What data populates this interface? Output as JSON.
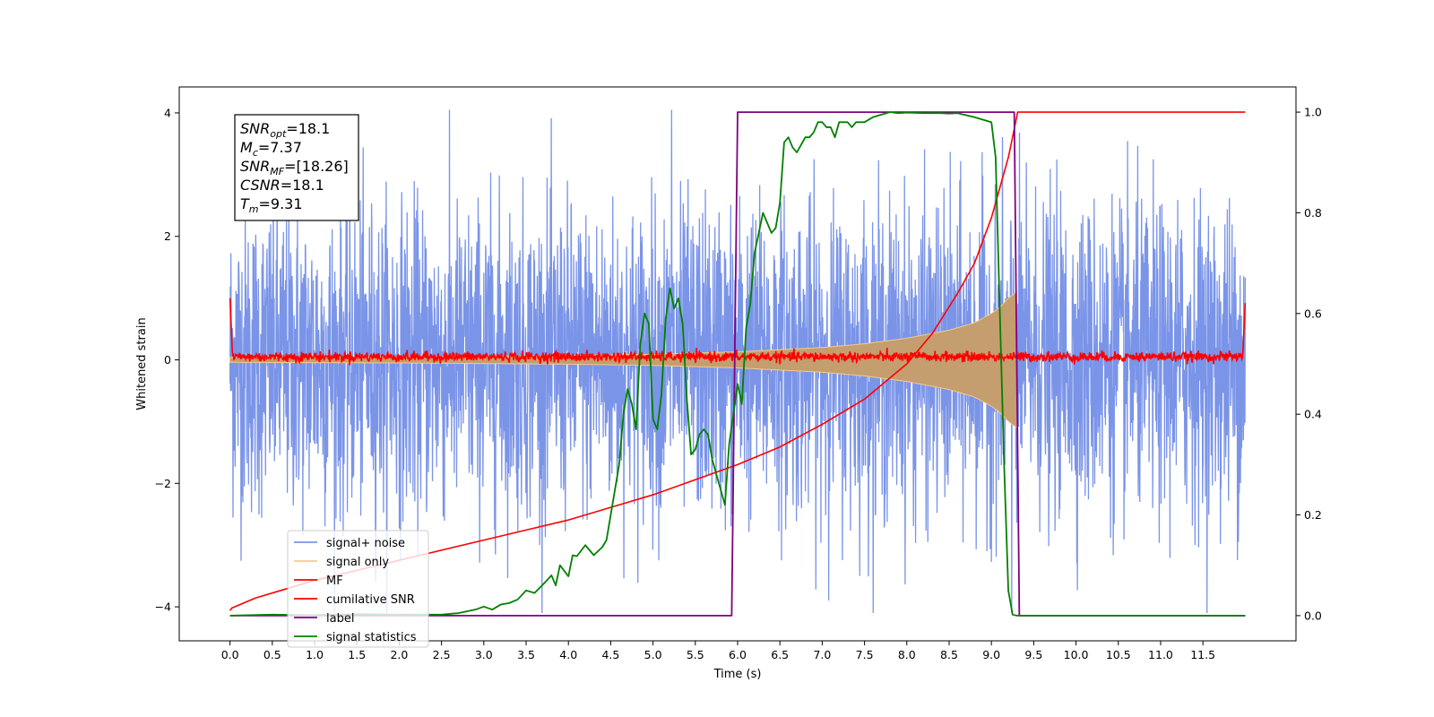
{
  "chart_data": {
    "type": "line",
    "title": "",
    "xlabel": "Time (s)",
    "ylabel": "Whitened strain",
    "xlim": [
      -0.6,
      12.6
    ],
    "ylim": [
      -4.55,
      4.42
    ],
    "y2lim": [
      -0.05,
      1.05
    ],
    "x_ticks": [
      "0.0",
      "0.5",
      "1.0",
      "1.5",
      "2.0",
      "2.5",
      "3.0",
      "3.5",
      "4.0",
      "4.5",
      "5.0",
      "5.5",
      "6.0",
      "6.5",
      "7.0",
      "7.5",
      "8.0",
      "8.5",
      "9.0",
      "9.5",
      "10.0",
      "10.5",
      "11.0",
      "11.5"
    ],
    "y_ticks": [
      "-4",
      "-2",
      "0",
      "2",
      "4"
    ],
    "y2_ticks": [
      "0.0",
      "0.2",
      "0.4",
      "0.6",
      "0.8",
      "1.0"
    ],
    "grid": false,
    "legend_position": "lower-left",
    "annotation": {
      "position": "upper-left",
      "lines": [
        {
          "base": "SNR",
          "sub": "opt",
          "value": "=18.1"
        },
        {
          "base": "M",
          "sub": "c",
          "value": "=7.37"
        },
        {
          "base": "SNR",
          "sub": "MF",
          "value": "=[18.26]"
        },
        {
          "base": "CSNR",
          "sub": "",
          "value": "=18.1"
        },
        {
          "base": "T",
          "sub": "m",
          "value": "=9.31"
        }
      ]
    },
    "series": [
      {
        "name": "signal+ noise",
        "color": "#7a94e8",
        "axis": "left",
        "kind": "noise",
        "time_range": [
          0.0,
          12.0
        ],
        "typical_amplitude": 2.0,
        "peak_min": -4.1,
        "peak_max": 4.05
      },
      {
        "name": "signal only",
        "color": "#f8c98a",
        "axis": "left",
        "kind": "chirp_envelope",
        "fill_color": "#c49e6e",
        "envelope_x": [
          0.0,
          1.0,
          2.0,
          3.0,
          4.0,
          5.0,
          6.0,
          7.0,
          7.5,
          8.0,
          8.5,
          8.8,
          9.0,
          9.1,
          9.2,
          9.3
        ],
        "envelope_y": [
          0.04,
          0.045,
          0.05,
          0.06,
          0.07,
          0.09,
          0.13,
          0.2,
          0.26,
          0.35,
          0.48,
          0.6,
          0.75,
          0.85,
          1.0,
          1.1
        ]
      },
      {
        "name": "MF",
        "color": "#ff0000",
        "axis": "left",
        "kind": "mf_noise",
        "x": [
          0.0,
          0.03,
          11.97,
          12.0
        ],
        "y": [
          1.0,
          0.05,
          0.05,
          0.92
        ],
        "noise_amplitude": 0.09
      },
      {
        "name": "cumilative SNR",
        "color": "#ff0000",
        "axis": "right",
        "x": [
          0.0,
          0.02,
          0.3,
          0.6,
          1.0,
          1.5,
          2.0,
          2.5,
          3.0,
          3.5,
          4.0,
          4.5,
          5.0,
          5.5,
          6.0,
          6.5,
          7.0,
          7.5,
          8.0,
          8.3,
          8.6,
          8.8,
          9.0,
          9.1,
          9.2,
          9.25,
          9.31,
          9.33,
          12.0
        ],
        "y": [
          0.01,
          0.015,
          0.035,
          0.05,
          0.07,
          0.09,
          0.11,
          0.13,
          0.15,
          0.17,
          0.19,
          0.215,
          0.24,
          0.27,
          0.3,
          0.335,
          0.38,
          0.43,
          0.5,
          0.56,
          0.64,
          0.7,
          0.79,
          0.85,
          0.91,
          0.95,
          1.0,
          1.0,
          1.0
        ]
      },
      {
        "name": "label",
        "color": "#800080",
        "axis": "right",
        "x": [
          0.0,
          5.93,
          6.0,
          9.27,
          9.33,
          12.0
        ],
        "y": [
          0.0,
          0.0,
          1.0,
          1.0,
          0.0,
          0.0
        ]
      },
      {
        "name": "signal statistics",
        "color": "#008000",
        "axis": "right",
        "x": [
          0.0,
          0.5,
          1.0,
          1.5,
          2.0,
          2.5,
          2.7,
          2.9,
          3.0,
          3.1,
          3.2,
          3.3,
          3.4,
          3.5,
          3.6,
          3.7,
          3.8,
          3.85,
          3.9,
          4.0,
          4.05,
          4.1,
          4.2,
          4.3,
          4.4,
          4.45,
          4.5,
          4.6,
          4.65,
          4.7,
          4.75,
          4.8,
          4.85,
          4.9,
          4.95,
          5.0,
          5.05,
          5.1,
          5.15,
          5.2,
          5.25,
          5.3,
          5.35,
          5.4,
          5.45,
          5.5,
          5.55,
          5.6,
          5.65,
          5.7,
          5.75,
          5.8,
          5.85,
          5.9,
          6.0,
          6.05,
          6.1,
          6.15,
          6.2,
          6.3,
          6.4,
          6.45,
          6.5,
          6.55,
          6.6,
          6.65,
          6.7,
          6.8,
          6.85,
          6.9,
          6.95,
          7.0,
          7.05,
          7.1,
          7.15,
          7.2,
          7.3,
          7.35,
          7.4,
          7.5,
          7.6,
          7.7,
          7.8,
          7.9,
          8.0,
          8.2,
          8.4,
          8.5,
          8.6,
          8.8,
          9.0,
          9.05,
          9.1,
          9.15,
          9.2,
          9.25,
          9.3,
          9.35,
          9.4,
          9.5,
          10.0,
          11.0,
          12.0
        ],
        "y": [
          0.0,
          0.002,
          0.001,
          0.003,
          0.002,
          0.002,
          0.005,
          0.012,
          0.018,
          0.012,
          0.022,
          0.025,
          0.032,
          0.05,
          0.045,
          0.062,
          0.08,
          0.06,
          0.1,
          0.078,
          0.12,
          0.118,
          0.14,
          0.12,
          0.136,
          0.15,
          0.2,
          0.3,
          0.4,
          0.45,
          0.42,
          0.37,
          0.54,
          0.6,
          0.58,
          0.39,
          0.37,
          0.44,
          0.59,
          0.65,
          0.61,
          0.63,
          0.58,
          0.43,
          0.32,
          0.33,
          0.36,
          0.37,
          0.36,
          0.31,
          0.28,
          0.25,
          0.22,
          0.34,
          0.46,
          0.42,
          0.57,
          0.62,
          0.72,
          0.8,
          0.76,
          0.77,
          0.82,
          0.94,
          0.95,
          0.93,
          0.92,
          0.95,
          0.95,
          0.96,
          0.98,
          0.98,
          0.97,
          0.97,
          0.95,
          0.98,
          0.98,
          0.97,
          0.98,
          0.98,
          0.99,
          0.995,
          1.0,
          0.998,
          0.999,
          0.998,
          0.998,
          0.997,
          0.998,
          0.99,
          0.98,
          0.91,
          0.6,
          0.3,
          0.05,
          0.002,
          0.0,
          0.0,
          0.0,
          0.0,
          0.0,
          0.0,
          0.0
        ]
      }
    ]
  }
}
